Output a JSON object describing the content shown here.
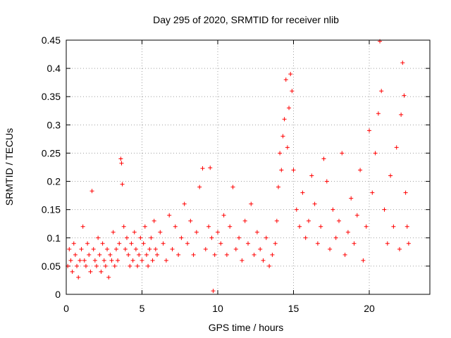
{
  "chart_data": {
    "type": "scatter",
    "title": "Day 295 of 2020, SRMTID for receiver nlib",
    "xlabel": "GPS time / hours",
    "ylabel": "SRMTID / TECUs",
    "xlim": [
      0,
      24
    ],
    "ylim": [
      0,
      0.45
    ],
    "xticks": [
      0,
      5,
      10,
      15,
      20
    ],
    "xtick_labels": [
      "0",
      "5",
      "10",
      "15",
      "20"
    ],
    "yticks": [
      0,
      0.05,
      0.1,
      0.15,
      0.2,
      0.25,
      0.3,
      0.35,
      0.4,
      0.45
    ],
    "ytick_labels": [
      "0",
      "0.05",
      "0.1",
      "0.15",
      "0.2",
      "0.25",
      "0.3",
      "0.35",
      "0.4",
      "0.45"
    ],
    "grid": true,
    "marker": "+",
    "series": [
      {
        "name": "SRMTID",
        "color": "#ff0000",
        "points": [
          [
            0.1,
            0.05
          ],
          [
            0.2,
            0.08
          ],
          [
            0.3,
            0.06
          ],
          [
            0.4,
            0.04
          ],
          [
            0.5,
            0.09
          ],
          [
            0.6,
            0.07
          ],
          [
            0.7,
            0.05
          ],
          [
            0.8,
            0.03
          ],
          [
            0.9,
            0.06
          ],
          [
            1.0,
            0.08
          ],
          [
            1.1,
            0.12
          ],
          [
            1.2,
            0.06
          ],
          [
            1.3,
            0.05
          ],
          [
            1.4,
            0.09
          ],
          [
            1.5,
            0.07
          ],
          [
            1.6,
            0.04
          ],
          [
            1.7,
            0.183
          ],
          [
            1.8,
            0.08
          ],
          [
            1.9,
            0.06
          ],
          [
            2.0,
            0.05
          ],
          [
            2.1,
            0.1
          ],
          [
            2.2,
            0.07
          ],
          [
            2.3,
            0.04
          ],
          [
            2.4,
            0.09
          ],
          [
            2.5,
            0.06
          ],
          [
            2.6,
            0.05
          ],
          [
            2.7,
            0.08
          ],
          [
            2.8,
            0.03
          ],
          [
            2.9,
            0.07
          ],
          [
            3.0,
            0.06
          ],
          [
            3.1,
            0.11
          ],
          [
            3.2,
            0.05
          ],
          [
            3.3,
            0.08
          ],
          [
            3.4,
            0.06
          ],
          [
            3.5,
            0.09
          ],
          [
            3.6,
            0.24
          ],
          [
            3.65,
            0.232
          ],
          [
            3.7,
            0.195
          ],
          [
            3.8,
            0.12
          ],
          [
            3.9,
            0.08
          ],
          [
            4.0,
            0.1
          ],
          [
            4.1,
            0.07
          ],
          [
            4.2,
            0.05
          ],
          [
            4.3,
            0.09
          ],
          [
            4.4,
            0.06
          ],
          [
            4.5,
            0.11
          ],
          [
            4.6,
            0.08
          ],
          [
            4.7,
            0.05
          ],
          [
            4.8,
            0.07
          ],
          [
            4.9,
            0.1
          ],
          [
            5.0,
            0.06
          ],
          [
            5.1,
            0.09
          ],
          [
            5.2,
            0.12
          ],
          [
            5.3,
            0.07
          ],
          [
            5.4,
            0.05
          ],
          [
            5.5,
            0.08
          ],
          [
            5.6,
            0.1
          ],
          [
            5.7,
            0.06
          ],
          [
            5.8,
            0.13
          ],
          [
            5.9,
            0.08
          ],
          [
            6.0,
            0.07
          ],
          [
            6.2,
            0.11
          ],
          [
            6.4,
            0.09
          ],
          [
            6.6,
            0.06
          ],
          [
            6.8,
            0.14
          ],
          [
            7.0,
            0.08
          ],
          [
            7.2,
            0.12
          ],
          [
            7.4,
            0.07
          ],
          [
            7.6,
            0.1
          ],
          [
            7.8,
            0.16
          ],
          [
            8.0,
            0.09
          ],
          [
            8.2,
            0.13
          ],
          [
            8.4,
            0.07
          ],
          [
            8.6,
            0.11
          ],
          [
            8.8,
            0.19
          ],
          [
            9.0,
            0.223
          ],
          [
            9.2,
            0.08
          ],
          [
            9.4,
            0.12
          ],
          [
            9.5,
            0.224
          ],
          [
            9.6,
            0.1
          ],
          [
            9.7,
            0.006
          ],
          [
            9.8,
            0.07
          ],
          [
            10.0,
            0.11
          ],
          [
            10.2,
            0.09
          ],
          [
            10.4,
            0.14
          ],
          [
            10.6,
            0.07
          ],
          [
            10.8,
            0.12
          ],
          [
            11.0,
            0.19
          ],
          [
            11.2,
            0.08
          ],
          [
            11.4,
            0.1
          ],
          [
            11.6,
            0.06
          ],
          [
            11.8,
            0.13
          ],
          [
            12.0,
            0.09
          ],
          [
            12.2,
            0.16
          ],
          [
            12.4,
            0.07
          ],
          [
            12.6,
            0.11
          ],
          [
            12.8,
            0.08
          ],
          [
            13.0,
            0.06
          ],
          [
            13.2,
            0.1
          ],
          [
            13.4,
            0.05
          ],
          [
            13.6,
            0.07
          ],
          [
            13.8,
            0.09
          ],
          [
            13.9,
            0.13
          ],
          [
            14.0,
            0.19
          ],
          [
            14.1,
            0.25
          ],
          [
            14.2,
            0.22
          ],
          [
            14.3,
            0.28
          ],
          [
            14.4,
            0.31
          ],
          [
            14.5,
            0.38
          ],
          [
            14.6,
            0.26
          ],
          [
            14.7,
            0.33
          ],
          [
            14.8,
            0.39
          ],
          [
            14.9,
            0.36
          ],
          [
            15.0,
            0.22
          ],
          [
            15.2,
            0.15
          ],
          [
            15.4,
            0.12
          ],
          [
            15.6,
            0.18
          ],
          [
            15.8,
            0.1
          ],
          [
            16.0,
            0.13
          ],
          [
            16.2,
            0.21
          ],
          [
            16.4,
            0.16
          ],
          [
            16.6,
            0.09
          ],
          [
            16.8,
            0.12
          ],
          [
            17.0,
            0.24
          ],
          [
            17.2,
            0.2
          ],
          [
            17.4,
            0.08
          ],
          [
            17.6,
            0.15
          ],
          [
            17.8,
            0.1
          ],
          [
            18.0,
            0.13
          ],
          [
            18.2,
            0.25
          ],
          [
            18.4,
            0.07
          ],
          [
            18.6,
            0.11
          ],
          [
            18.8,
            0.17
          ],
          [
            19.0,
            0.09
          ],
          [
            19.2,
            0.14
          ],
          [
            19.4,
            0.22
          ],
          [
            19.6,
            0.06
          ],
          [
            19.8,
            0.12
          ],
          [
            20.0,
            0.29
          ],
          [
            20.2,
            0.18
          ],
          [
            20.4,
            0.25
          ],
          [
            20.6,
            0.32
          ],
          [
            20.7,
            0.448
          ],
          [
            20.8,
            0.36
          ],
          [
            21.0,
            0.15
          ],
          [
            21.2,
            0.09
          ],
          [
            21.4,
            0.21
          ],
          [
            21.6,
            0.12
          ],
          [
            21.8,
            0.26
          ],
          [
            22.0,
            0.08
          ],
          [
            22.1,
            0.318
          ],
          [
            22.2,
            0.41
          ],
          [
            22.3,
            0.352
          ],
          [
            22.4,
            0.18
          ],
          [
            22.5,
            0.12
          ],
          [
            22.6,
            0.09
          ]
        ]
      }
    ]
  }
}
